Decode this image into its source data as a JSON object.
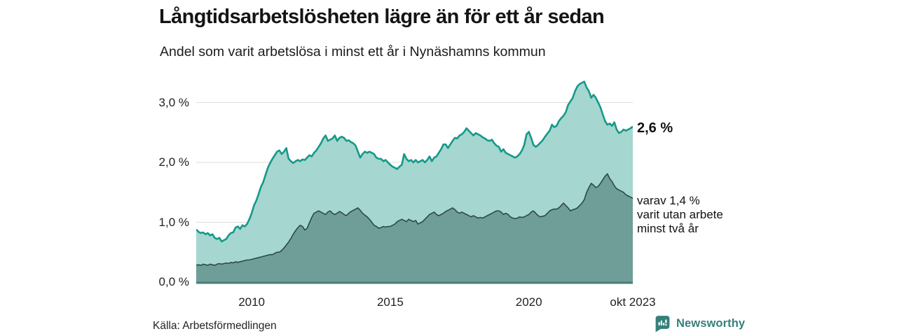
{
  "header": {
    "title": "Långtidsarbetslösheten lägre än för ett år sedan",
    "subtitle": "Andel som varit arbetslösa i minst ett år i Nynäshamns kommun"
  },
  "annotations": {
    "total_end_label": "2,6 %",
    "subset_line1": "varav 1,4 %",
    "subset_line2": "varit utan arbete",
    "subset_line3": "minst två år"
  },
  "footer": {
    "source": "Källa: Arbetsförmedlingen",
    "brand": "Newsworthy"
  },
  "colors": {
    "total_line": "#15998a",
    "total_fill": "#a5d6cf",
    "subset_line": "#2c4a45",
    "subset_fill": "#6f9e98",
    "baseline": "#4d7c76",
    "grid": "#dcdcdc",
    "brand_teal": "#35807a",
    "text": "#141414"
  },
  "chart_data": {
    "type": "area",
    "title": "Långtidsarbetslösheten lägre än för ett år sedan",
    "subtitle": "Andel som varit arbetslösa i minst ett år i Nynäshamns kommun",
    "x_start": "2008-01",
    "x_end": "2023-10",
    "frequency": "monthly",
    "unit": "%",
    "ylim": [
      0,
      3.43
    ],
    "grid": true,
    "y_ticks": [
      {
        "label": "3,0 %",
        "value": 3.0
      },
      {
        "label": "2,0 %",
        "value": 2.0
      },
      {
        "label": "1,0 %",
        "value": 1.0
      },
      {
        "label": "0,0 %",
        "value": 0.0
      }
    ],
    "x_ticks": [
      {
        "label": "2010",
        "month_index": 24
      },
      {
        "label": "2015",
        "month_index": 84
      },
      {
        "label": "2020",
        "month_index": 144
      },
      {
        "label": "okt 2023",
        "month_index": 189
      }
    ],
    "series": [
      {
        "name": "Andel arbetslösa minst ett år",
        "end_value": 2.6,
        "line_color": "#15998a",
        "fill_color": "#a5d6cf",
        "line_width": 2.6,
        "values": [
          0.88,
          0.84,
          0.82,
          0.83,
          0.8,
          0.82,
          0.78,
          0.8,
          0.74,
          0.72,
          0.74,
          0.68,
          0.7,
          0.72,
          0.78,
          0.82,
          0.83,
          0.91,
          0.93,
          0.89,
          0.95,
          0.93,
          0.97,
          1.05,
          1.15,
          1.28,
          1.36,
          1.47,
          1.59,
          1.67,
          1.79,
          1.91,
          1.99,
          2.06,
          2.12,
          2.18,
          2.2,
          2.14,
          2.18,
          2.24,
          2.06,
          2.02,
          1.99,
          2.02,
          2.04,
          2.02,
          2.05,
          2.04,
          2.08,
          2.12,
          2.1,
          2.16,
          2.2,
          2.26,
          2.32,
          2.4,
          2.45,
          2.36,
          2.38,
          2.4,
          2.45,
          2.36,
          2.41,
          2.43,
          2.41,
          2.36,
          2.37,
          2.34,
          2.32,
          2.28,
          2.18,
          2.08,
          2.14,
          2.18,
          2.16,
          2.18,
          2.16,
          2.14,
          2.08,
          2.06,
          2.06,
          2.02,
          2.04,
          2.0,
          1.96,
          1.93,
          1.91,
          1.89,
          1.93,
          1.96,
          2.14,
          2.06,
          2.02,
          2.04,
          2.0,
          2.04,
          2.0,
          2.02,
          2.04,
          2.0,
          2.04,
          2.1,
          2.02,
          2.08,
          2.1,
          2.16,
          2.22,
          2.3,
          2.3,
          2.24,
          2.3,
          2.36,
          2.41,
          2.4,
          2.45,
          2.47,
          2.51,
          2.57,
          2.53,
          2.49,
          2.45,
          2.49,
          2.47,
          2.45,
          2.42,
          2.4,
          2.37,
          2.36,
          2.38,
          2.32,
          2.28,
          2.26,
          2.18,
          2.22,
          2.16,
          2.14,
          2.12,
          2.1,
          2.08,
          2.1,
          2.14,
          2.2,
          2.29,
          2.47,
          2.51,
          2.41,
          2.29,
          2.26,
          2.29,
          2.33,
          2.37,
          2.43,
          2.48,
          2.53,
          2.63,
          2.59,
          2.61,
          2.69,
          2.74,
          2.78,
          2.84,
          2.96,
          3.02,
          3.08,
          3.19,
          3.27,
          3.31,
          3.33,
          3.35,
          3.25,
          3.19,
          3.08,
          3.13,
          3.08,
          3.0,
          2.92,
          2.8,
          2.69,
          2.63,
          2.65,
          2.61,
          2.67,
          2.55,
          2.49,
          2.51,
          2.55,
          2.53,
          2.55,
          2.57,
          2.6
        ]
      },
      {
        "name": "varav utan arbete minst två år",
        "end_value": 1.4,
        "line_color": "#2c4a45",
        "fill_color": "#6f9e98",
        "line_width": 1.6,
        "values": [
          0.28,
          0.29,
          0.28,
          0.3,
          0.29,
          0.28,
          0.3,
          0.29,
          0.28,
          0.3,
          0.31,
          0.3,
          0.31,
          0.32,
          0.31,
          0.33,
          0.32,
          0.34,
          0.33,
          0.34,
          0.35,
          0.36,
          0.37,
          0.37,
          0.38,
          0.39,
          0.4,
          0.41,
          0.42,
          0.43,
          0.44,
          0.45,
          0.46,
          0.46,
          0.48,
          0.5,
          0.5,
          0.53,
          0.57,
          0.62,
          0.67,
          0.73,
          0.8,
          0.86,
          0.91,
          0.95,
          0.93,
          0.87,
          0.9,
          0.99,
          1.08,
          1.15,
          1.17,
          1.19,
          1.17,
          1.15,
          1.13,
          1.17,
          1.19,
          1.15,
          1.13,
          1.15,
          1.18,
          1.16,
          1.13,
          1.11,
          1.15,
          1.18,
          1.2,
          1.22,
          1.24,
          1.2,
          1.15,
          1.12,
          1.09,
          1.05,
          1.0,
          0.95,
          0.93,
          0.9,
          0.91,
          0.93,
          0.92,
          0.93,
          0.93,
          0.95,
          0.97,
          1.01,
          1.03,
          1.05,
          1.03,
          1.01,
          1.05,
          1.03,
          1.01,
          1.03,
          0.97,
          0.99,
          1.01,
          1.05,
          1.09,
          1.13,
          1.15,
          1.17,
          1.13,
          1.11,
          1.13,
          1.15,
          1.18,
          1.2,
          1.22,
          1.24,
          1.21,
          1.17,
          1.15,
          1.17,
          1.15,
          1.13,
          1.11,
          1.09,
          1.11,
          1.09,
          1.07,
          1.08,
          1.07,
          1.09,
          1.11,
          1.13,
          1.15,
          1.17,
          1.19,
          1.19,
          1.17,
          1.13,
          1.15,
          1.13,
          1.09,
          1.07,
          1.06,
          1.07,
          1.09,
          1.08,
          1.09,
          1.11,
          1.13,
          1.17,
          1.19,
          1.15,
          1.11,
          1.09,
          1.1,
          1.11,
          1.15,
          1.19,
          1.21,
          1.22,
          1.22,
          1.24,
          1.28,
          1.32,
          1.28,
          1.24,
          1.19,
          1.21,
          1.22,
          1.24,
          1.28,
          1.32,
          1.38,
          1.5,
          1.58,
          1.65,
          1.62,
          1.58,
          1.6,
          1.65,
          1.71,
          1.77,
          1.81,
          1.73,
          1.68,
          1.61,
          1.56,
          1.54,
          1.52,
          1.5,
          1.46,
          1.44,
          1.42,
          1.4
        ]
      }
    ],
    "legend_position": "right-annotations"
  }
}
